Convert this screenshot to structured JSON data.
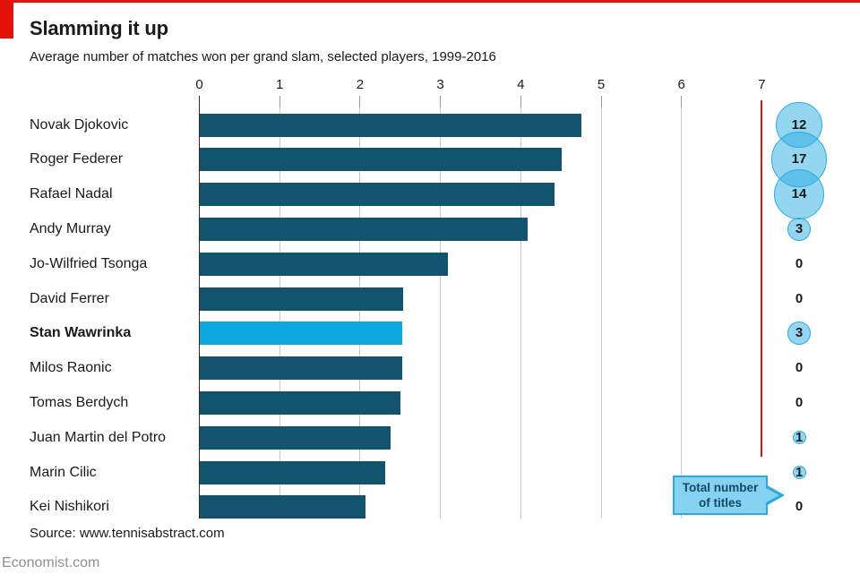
{
  "header": {
    "title": "Slamming it up",
    "subtitle": "Average number of matches won per grand slam, selected players, 1999-2016"
  },
  "annotation": {
    "line1": "Total number",
    "line2": "of titles"
  },
  "footer": {
    "source": "Source: www.tennisabstract.com",
    "brand": "Economist.com"
  },
  "colors": {
    "accent_red": "#E3120B",
    "bar_dark": "#12536E",
    "bar_highlight": "#0CA8E0",
    "bubble_fill_rgba": "rgba(41,171,226,0.5)",
    "bubble_border": "#29ABE2",
    "grid": "#C9C9C9",
    "zero_axis": "#2B2B2B",
    "tick": "#999999",
    "text": "#1A1A1A",
    "callout_fill": "#85D2F1",
    "callout_text": "#12486B",
    "brand_gray": "#909090"
  },
  "chart_data": {
    "type": "bar",
    "orientation": "horizontal",
    "title": "Slamming it up",
    "subtitle": "Average number of matches won per grand slam, selected players, 1999-2016",
    "categories": [
      "Novak Djokovic",
      "Roger Federer",
      "Rafael Nadal",
      "Andy Murray",
      "Jo-Wilfried Tsonga",
      "David Ferrer",
      "Stan Wawrinka",
      "Milos Raonic",
      "Tomas Berdych",
      "Juan Martin del Potro",
      "Marin Cilic",
      "Kei Nishikori"
    ],
    "series": [
      {
        "name": "Average matches won per grand slam",
        "values": [
          4.75,
          4.51,
          4.42,
          4.09,
          3.09,
          2.54,
          2.53,
          2.52,
          2.5,
          2.38,
          2.31,
          2.07
        ]
      },
      {
        "name": "Total number of titles",
        "values": [
          12,
          17,
          14,
          3,
          0,
          0,
          3,
          0,
          0,
          1,
          1,
          0
        ]
      }
    ],
    "highlight_category": "Stan Wawrinka",
    "xlim": [
      0,
      7
    ],
    "x_ticks": [
      0,
      1,
      2,
      3,
      4,
      5,
      6,
      7
    ],
    "grid": true,
    "red_axis_line_at": 7,
    "bubble_note": "bubble area proportional to total titles; zero shown as plain number",
    "legend_position": "callout pointing at titles column"
  }
}
